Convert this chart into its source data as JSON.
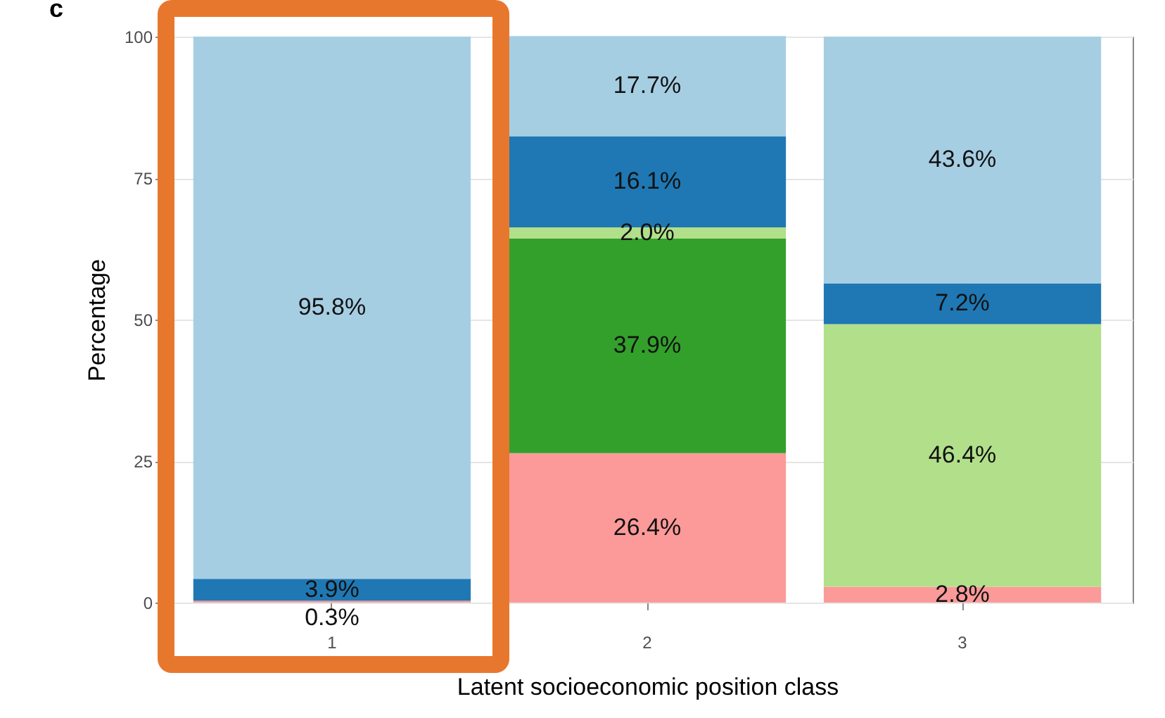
{
  "chart_data": {
    "type": "bar",
    "title": "c",
    "xlabel": "Latent socioeconomic position class",
    "ylabel": "Percentage",
    "categories": [
      "1",
      "2",
      "3"
    ],
    "stacked": true,
    "ylim": [
      0,
      100
    ],
    "yticks": [
      0,
      25,
      50,
      75,
      100
    ],
    "grid": true,
    "legend": false,
    "series": [
      {
        "color": "#fb9a99",
        "values": [
          0.3,
          26.4,
          2.8
        ],
        "value_labels": [
          "0.3%",
          "26.4%",
          "2.8%"
        ]
      },
      {
        "color": "#33a02c",
        "values": [
          null,
          37.9,
          null
        ],
        "value_labels": [
          null,
          "37.9%",
          null
        ]
      },
      {
        "color": "#b2df8a",
        "values": [
          null,
          2.0,
          46.4
        ],
        "value_labels": [
          null,
          "2.0%",
          "46.4%"
        ]
      },
      {
        "color": "#1f78b4",
        "values": [
          3.9,
          16.1,
          7.2
        ],
        "value_labels": [
          "3.9%",
          "16.1%",
          "7.2%"
        ]
      },
      {
        "color": "#a6cee3",
        "values": [
          95.8,
          17.7,
          43.6
        ],
        "value_labels": [
          "95.8%",
          "17.7%",
          "43.6%"
        ]
      }
    ]
  }
}
